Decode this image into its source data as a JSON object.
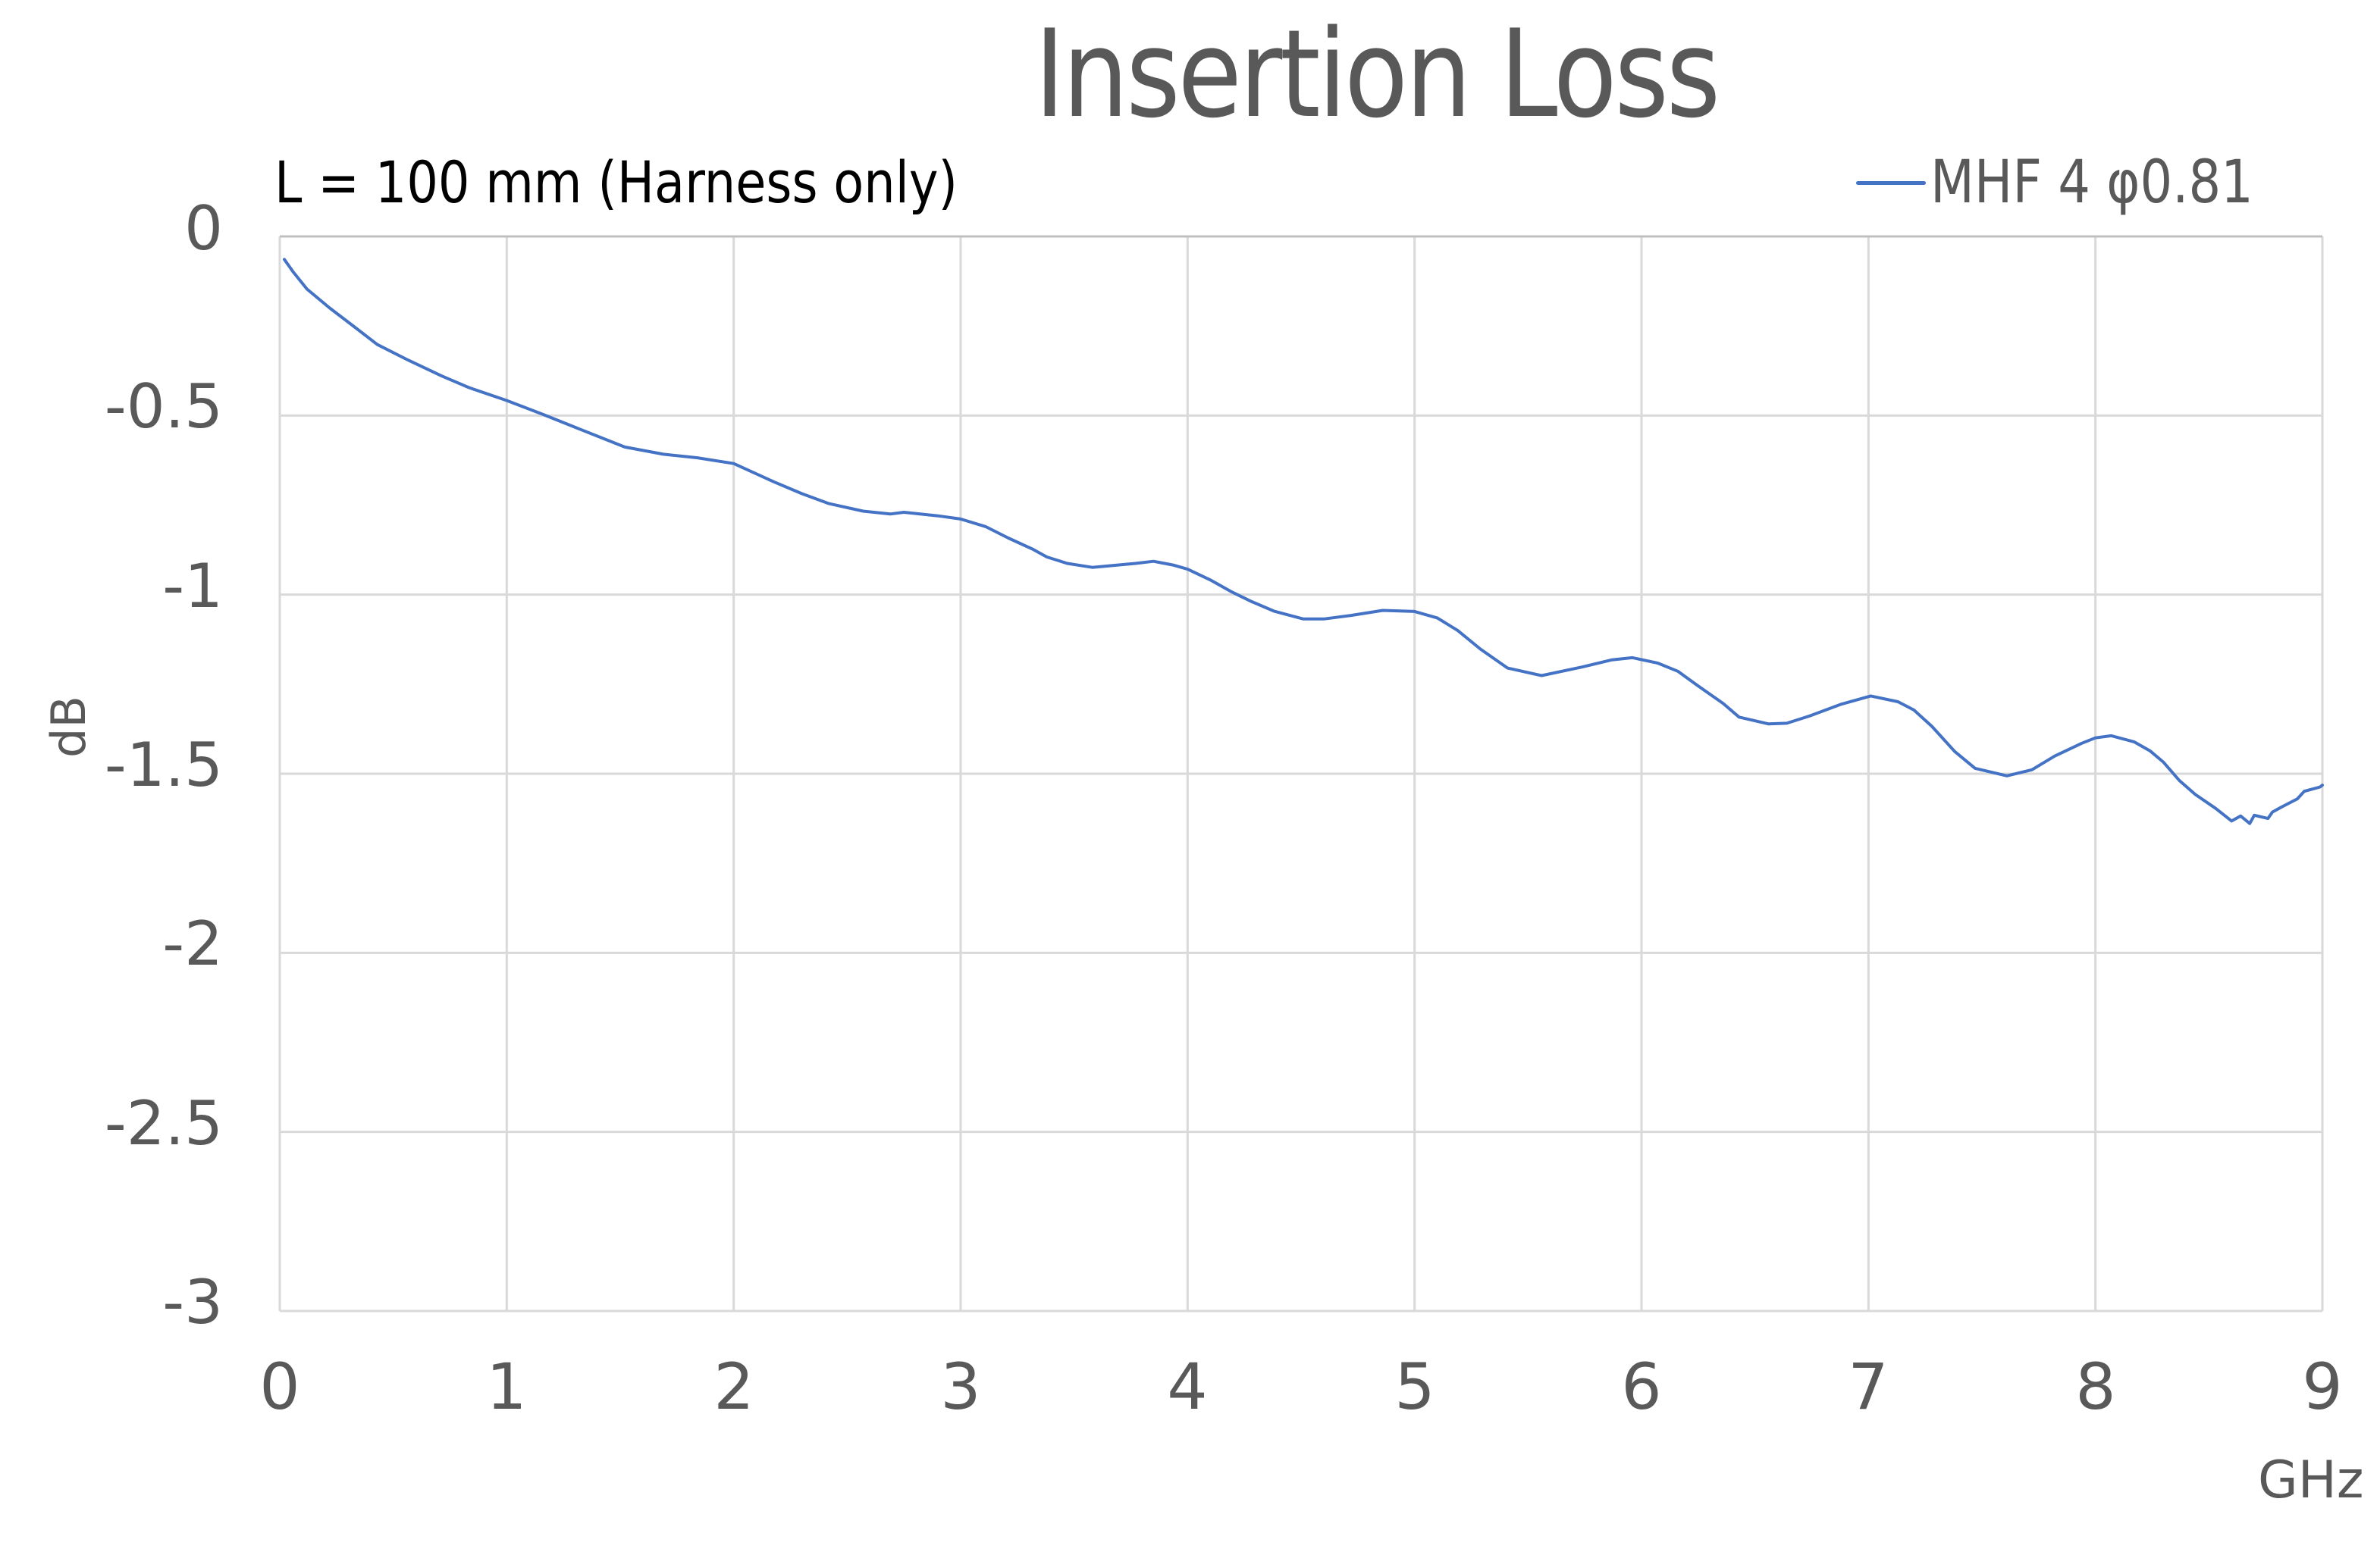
{
  "title": "Insertion Loss",
  "annotation": "L = 100 mm (Harness only)",
  "legend": {
    "label": "MHF 4   φ0.81",
    "color": "#4472c4"
  },
  "axes": {
    "x_title": "GHz",
    "y_title": "dB",
    "x_ticks": [
      "0",
      "1",
      "2",
      "3",
      "4",
      "5",
      "6",
      "7",
      "8",
      "9"
    ],
    "y_ticks": [
      "0",
      "-0.5",
      "-1",
      "-1.5",
      "-2",
      "-2.5",
      "-3"
    ]
  },
  "colors": {
    "series": "#4472c4",
    "grid": "#d9d9d9",
    "plot_border_top": "#bfbfbf",
    "text": "#595959",
    "annotation_text": "#000000"
  },
  "chart_data": {
    "type": "line",
    "title": "Insertion Loss",
    "subtitle": "L = 100 mm (Harness only)",
    "xlabel": "GHz",
    "ylabel": "dB",
    "xlim": [
      0,
      9
    ],
    "ylim": [
      -3,
      0
    ],
    "x_ticks": [
      0,
      1,
      2,
      3,
      4,
      5,
      6,
      7,
      8,
      9
    ],
    "y_ticks": [
      0,
      -0.5,
      -1,
      -1.5,
      -2,
      -2.5,
      -3
    ],
    "grid": true,
    "legend_position": "top-right",
    "series": [
      {
        "name": "MHF 4   φ0.81",
        "color": "#4472c4",
        "x": [
          0.02,
          0.06,
          0.12,
          0.22,
          0.33,
          0.43,
          0.565,
          0.715,
          0.834,
          1.0,
          1.16,
          1.31,
          1.52,
          1.69,
          1.84,
          2.0,
          2.18,
          2.3,
          2.42,
          2.57,
          2.69,
          2.75,
          2.9,
          3.0,
          3.11,
          3.21,
          3.32,
          3.38,
          3.47,
          3.58,
          3.77,
          3.85,
          3.94,
          4.0,
          4.1,
          4.19,
          4.28,
          4.38,
          4.51,
          4.6,
          4.72,
          4.86,
          5.0,
          5.1,
          5.19,
          5.29,
          5.41,
          5.56,
          5.74,
          5.87,
          5.96,
          6.07,
          6.16,
          6.25,
          6.36,
          6.43,
          6.56,
          6.64,
          6.74,
          6.88,
          7.01,
          7.13,
          7.2,
          7.28,
          7.38,
          7.47,
          7.61,
          7.72,
          7.82,
          7.94,
          8.0,
          8.07,
          8.17,
          8.24,
          8.3,
          8.37,
          8.44,
          8.53,
          8.6,
          8.64,
          8.68,
          8.7,
          8.76,
          8.78,
          8.82,
          8.89,
          8.92,
          8.99,
          9.0
        ],
        "values": [
          -0.064,
          -0.1,
          -0.147,
          -0.2,
          -0.253,
          -0.302,
          -0.345,
          -0.39,
          -0.422,
          -0.458,
          -0.497,
          -0.535,
          -0.588,
          -0.608,
          -0.618,
          -0.634,
          -0.686,
          -0.718,
          -0.746,
          -0.767,
          -0.775,
          -0.77,
          -0.78,
          -0.789,
          -0.81,
          -0.842,
          -0.874,
          -0.895,
          -0.913,
          -0.924,
          -0.913,
          -0.907,
          -0.918,
          -0.929,
          -0.959,
          -0.991,
          -1.019,
          -1.046,
          -1.068,
          -1.068,
          -1.058,
          -1.044,
          -1.047,
          -1.065,
          -1.1,
          -1.152,
          -1.205,
          -1.226,
          -1.202,
          -1.182,
          -1.176,
          -1.191,
          -1.214,
          -1.255,
          -1.304,
          -1.342,
          -1.361,
          -1.359,
          -1.339,
          -1.306,
          -1.283,
          -1.299,
          -1.322,
          -1.368,
          -1.438,
          -1.485,
          -1.506,
          -1.489,
          -1.451,
          -1.415,
          -1.4,
          -1.394,
          -1.411,
          -1.436,
          -1.468,
          -1.519,
          -1.558,
          -1.597,
          -1.632,
          -1.618,
          -1.639,
          -1.616,
          -1.625,
          -1.607,
          -1.593,
          -1.57,
          -1.549,
          -1.537,
          -1.532
        ]
      }
    ]
  }
}
